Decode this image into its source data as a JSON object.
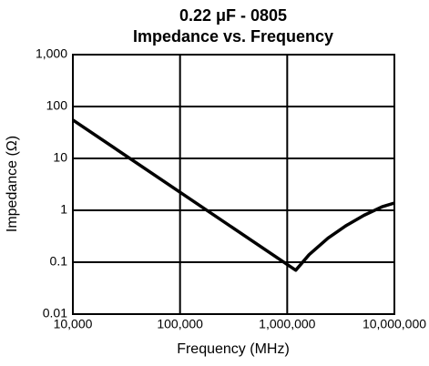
{
  "chart_data": {
    "type": "line",
    "title": "0.22 μF - 0805",
    "subtitle": "Impedance vs. Frequency",
    "x_label": "Frequency (MHz)",
    "y_label": "Impedance (Ω)",
    "x": [
      10000,
      1200000,
      1600000,
      2400000,
      3500000,
      5200000,
      7700000,
      10000000
    ],
    "values": [
      55,
      0.07,
      0.14,
      0.29,
      0.5,
      0.8,
      1.17,
      1.38
    ],
    "color": "#000000",
    "xlog": true,
    "ylog": true,
    "grid": true,
    "xlim": [
      10000,
      10000000
    ],
    "xticks": [
      {
        "value": 10000,
        "label": "10,000"
      },
      {
        "value": 100000,
        "label": "100,000"
      },
      {
        "value": 1000000,
        "label": "1,000,000"
      },
      {
        "value": 10000000,
        "label": "10,000,000"
      }
    ],
    "ylim": [
      0.01,
      1000
    ],
    "yticks": [
      0.01,
      0.1,
      1,
      10,
      100,
      {
        "value": 1000,
        "label": "1,000"
      }
    ]
  }
}
